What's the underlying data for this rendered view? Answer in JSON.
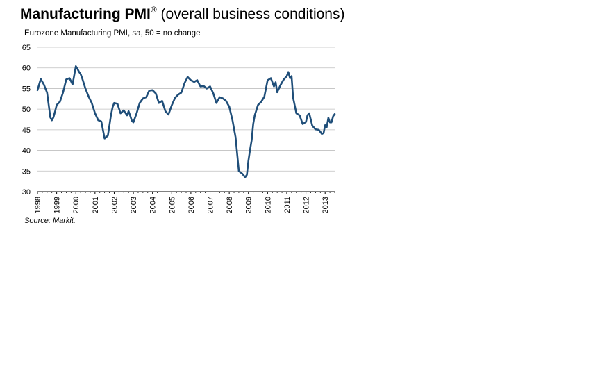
{
  "title": {
    "bold": "Manufacturing PMI",
    "mark": "®",
    "rest": " (overall business conditions)"
  },
  "subtitle": "Eurozone Manufacturing PMI, sa, 50 = no change",
  "source": "Source: Markit.",
  "chart_data": {
    "type": "line",
    "title": "Manufacturing PMI® (overall business conditions)",
    "subtitle": "Eurozone Manufacturing PMI, sa, 50 = no change",
    "xlabel": "",
    "ylabel": "",
    "ylim": [
      30,
      65
    ],
    "yticks": [
      30,
      35,
      40,
      45,
      50,
      55,
      60,
      65
    ],
    "xlim": [
      1998.0,
      2013.5
    ],
    "xticks": [
      "1998",
      "1999",
      "2000",
      "2001",
      "2002",
      "2003",
      "2004",
      "2005",
      "2006",
      "2007",
      "2008",
      "2009",
      "2010",
      "2011",
      "2012",
      "2013"
    ],
    "grid": true,
    "line_color": "#1f4e79",
    "series": [
      {
        "name": "Eurozone Manufacturing PMI",
        "x": [
          1998.0,
          1998.17,
          1998.33,
          1998.5,
          1998.67,
          1998.75,
          1998.83,
          1998.92,
          1999.0,
          1999.17,
          1999.33,
          1999.5,
          1999.67,
          1999.83,
          2000.0,
          2000.08,
          2000.17,
          2000.25,
          2000.33,
          2000.5,
          2000.67,
          2000.83,
          2001.0,
          2001.17,
          2001.33,
          2001.5,
          2001.67,
          2001.75,
          2001.83,
          2001.92,
          2002.0,
          2002.17,
          2002.33,
          2002.5,
          2002.67,
          2002.75,
          2002.83,
          2002.92,
          2003.0,
          2003.17,
          2003.33,
          2003.5,
          2003.67,
          2003.83,
          2004.0,
          2004.17,
          2004.33,
          2004.5,
          2004.67,
          2004.83,
          2005.0,
          2005.17,
          2005.33,
          2005.5,
          2005.67,
          2005.83,
          2006.0,
          2006.17,
          2006.33,
          2006.5,
          2006.67,
          2006.83,
          2007.0,
          2007.17,
          2007.33,
          2007.5,
          2007.67,
          2007.83,
          2008.0,
          2008.17,
          2008.33,
          2008.5,
          2008.67,
          2008.83,
          2008.92,
          2009.0,
          2009.08,
          2009.17,
          2009.25,
          2009.33,
          2009.5,
          2009.67,
          2009.83,
          2010.0,
          2010.17,
          2010.33,
          2010.42,
          2010.5,
          2010.67,
          2010.83,
          2011.0,
          2011.08,
          2011.17,
          2011.25,
          2011.33,
          2011.5,
          2011.67,
          2011.83,
          2012.0,
          2012.08,
          2012.17,
          2012.25,
          2012.33,
          2012.5,
          2012.67,
          2012.75,
          2012.83,
          2012.92,
          2013.0,
          2013.08,
          2013.17,
          2013.25,
          2013.33,
          2013.42,
          2013.5
        ],
        "values": [
          54.6,
          57.3,
          56.0,
          54.0,
          48.0,
          47.3,
          48.0,
          49.5,
          51.0,
          51.8,
          54.0,
          57.2,
          57.5,
          56.0,
          60.4,
          59.8,
          59.0,
          58.5,
          57.5,
          55.0,
          53.0,
          51.5,
          49.0,
          47.3,
          47.0,
          42.9,
          43.6,
          46.0,
          48.5,
          50.5,
          51.5,
          51.3,
          49.0,
          49.7,
          48.5,
          49.5,
          48.5,
          47.2,
          46.8,
          49.0,
          51.5,
          52.6,
          52.9,
          54.5,
          54.6,
          53.8,
          51.5,
          52.0,
          49.5,
          48.7,
          50.9,
          52.7,
          53.5,
          54.0,
          56.3,
          57.8,
          57.0,
          56.6,
          57.0,
          55.5,
          55.6,
          55.0,
          55.5,
          53.8,
          51.5,
          52.9,
          52.6,
          52.0,
          50.6,
          47.3,
          43.2,
          35.0,
          34.4,
          33.5,
          34.1,
          37.5,
          40.0,
          42.5,
          46.4,
          48.5,
          51.0,
          51.8,
          53.0,
          57.0,
          57.5,
          55.5,
          56.5,
          54.1,
          55.8,
          57.1,
          58.0,
          59.0,
          57.5,
          58.0,
          52.8,
          49.0,
          48.5,
          46.4,
          46.9,
          48.5,
          49.0,
          47.5,
          46.0,
          45.1,
          45.0,
          44.5,
          44.0,
          44.2,
          46.1,
          45.6,
          47.9,
          46.8,
          46.8,
          48.3,
          48.8
        ]
      }
    ]
  }
}
